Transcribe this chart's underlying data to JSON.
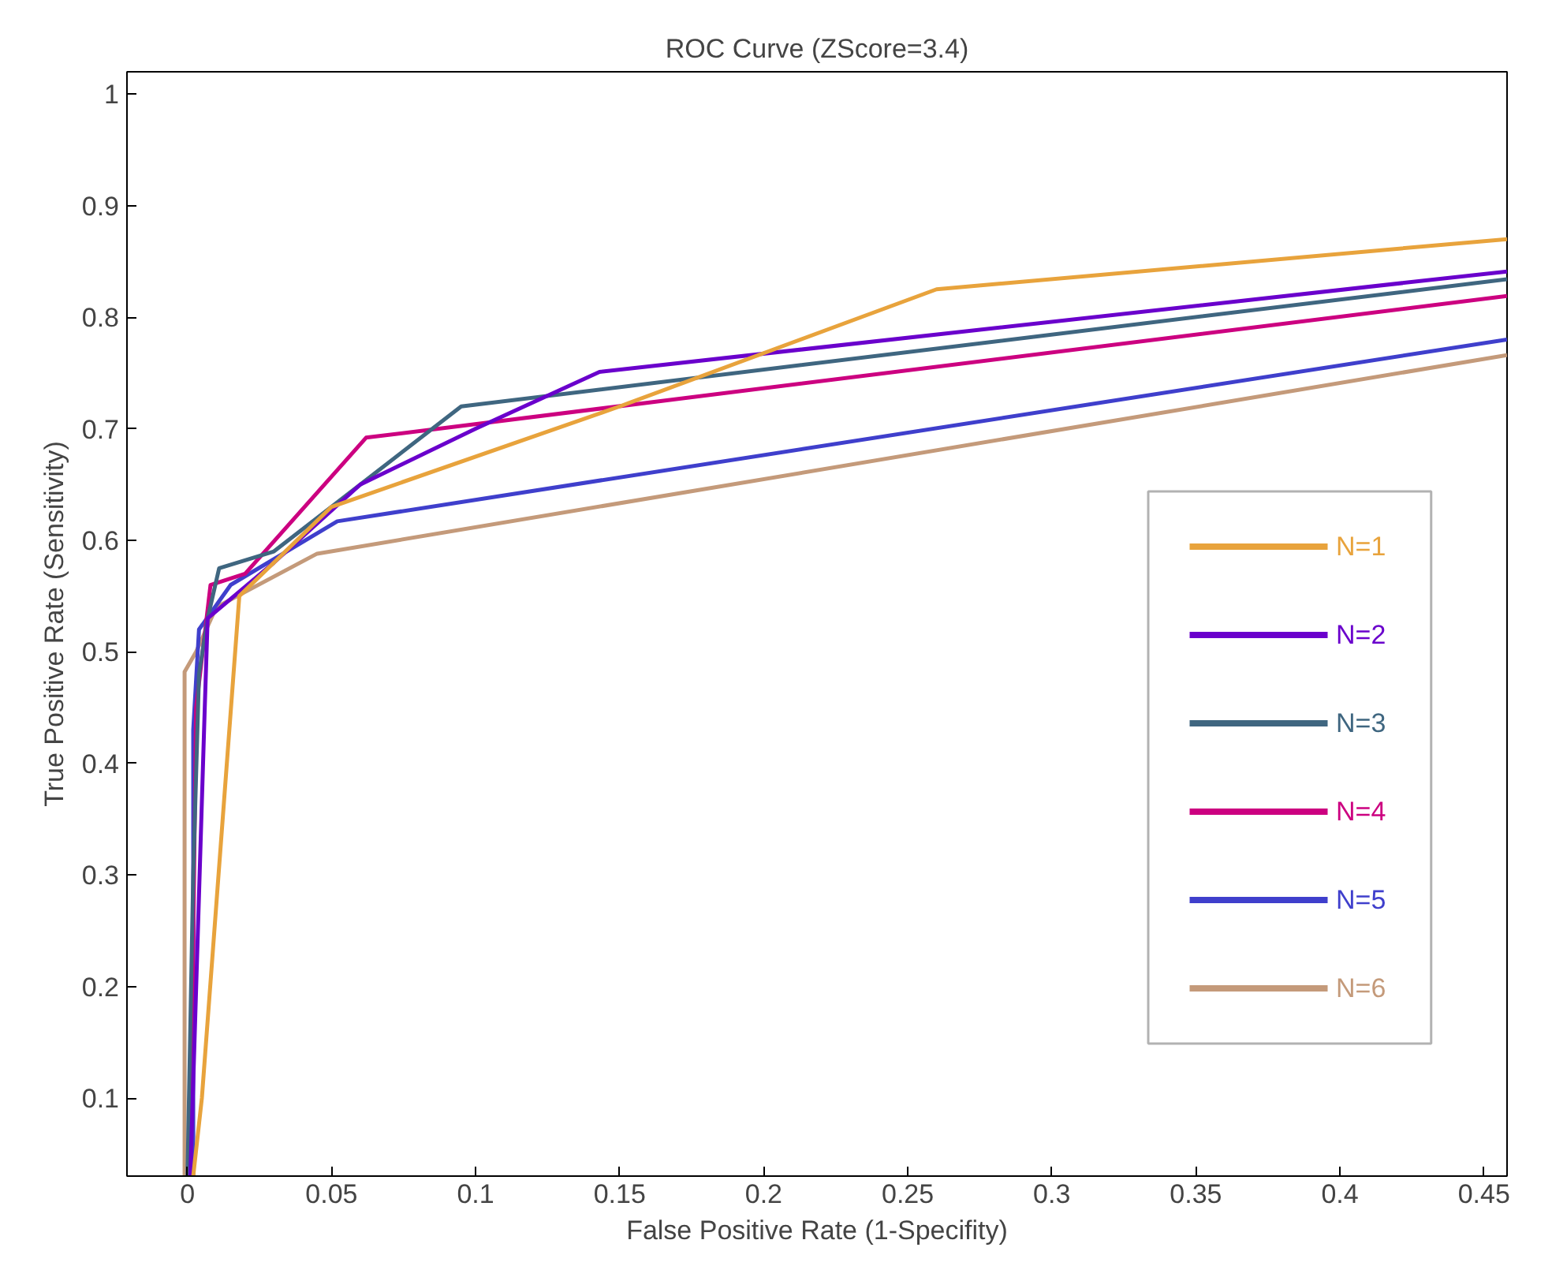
{
  "chart_data": {
    "type": "line",
    "title": "ROC Curve (ZScore=3.4)",
    "xlabel": "False Positive Rate (1-Specifity)",
    "ylabel": "True Positive Rate (Sensitivity)",
    "xlim": [
      -0.021,
      0.458
    ],
    "ylim": [
      0.03,
      1.02
    ],
    "xticks": [
      0,
      0.05,
      0.1,
      0.15,
      0.2,
      0.25,
      0.3,
      0.35,
      0.4,
      0.45
    ],
    "yticks": [
      0.1,
      0.2,
      0.3,
      0.4,
      0.5,
      0.6,
      0.7,
      0.8,
      0.9,
      1
    ],
    "grid": false,
    "legend": "bottom right",
    "series": [
      {
        "name": "N=1",
        "color": "#e8a33c",
        "x": [
          0.002,
          0.005,
          0.018,
          0.05,
          0.15,
          0.26,
          0.458
        ],
        "values": [
          0.03,
          0.1,
          0.55,
          0.63,
          0.72,
          0.825,
          0.87
        ]
      },
      {
        "name": "N=2",
        "color": "#6a00cc",
        "x": [
          0.001,
          0.006,
          0.007,
          0.03,
          0.06,
          0.1,
          0.143,
          0.458
        ],
        "values": [
          0.03,
          0.45,
          0.53,
          0.58,
          0.65,
          0.7,
          0.751,
          0.841
        ]
      },
      {
        "name": "N=3",
        "color": "#3f6680",
        "x": [
          0.0,
          0.002,
          0.004,
          0.007,
          0.011,
          0.03,
          0.06,
          0.095,
          0.458
        ],
        "values": [
          0.03,
          0.3,
          0.48,
          0.53,
          0.575,
          0.59,
          0.65,
          0.72,
          0.834
        ]
      },
      {
        "name": "N=4",
        "color": "#cc0080",
        "x": [
          0.001,
          0.003,
          0.008,
          0.02,
          0.062,
          0.458
        ],
        "values": [
          0.03,
          0.45,
          0.56,
          0.57,
          0.692,
          0.819
        ]
      },
      {
        "name": "N=5",
        "color": "#3f3fcc",
        "x": [
          0.002,
          0.002,
          0.004,
          0.015,
          0.052,
          0.458
        ],
        "values": [
          0.03,
          0.43,
          0.52,
          0.56,
          0.617,
          0.78
        ]
      },
      {
        "name": "N=6",
        "color": "#c49a7a",
        "x": [
          -0.001,
          -0.001,
          0.003,
          0.01,
          0.045,
          0.458
        ],
        "values": [
          0.03,
          0.482,
          0.5,
          0.54,
          0.588,
          0.766
        ]
      }
    ]
  }
}
